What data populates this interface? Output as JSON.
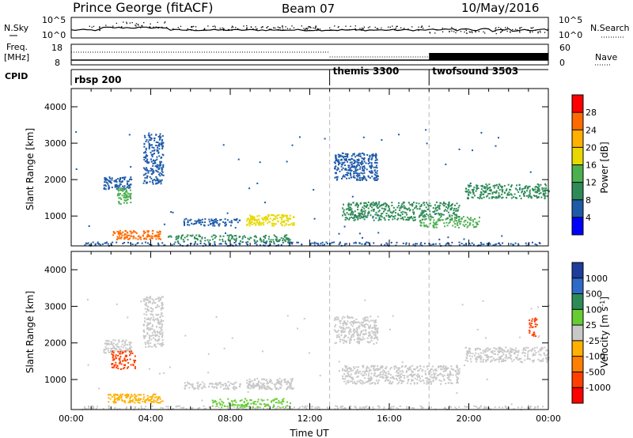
{
  "header": {
    "station": "Prince George (fitACF)",
    "beam": "Beam 07",
    "date": "10/May/2016"
  },
  "aux_panels": {
    "nsky_label": "N.Sky",
    "nsearch_label": "N.Search",
    "nsky_ticks": [
      "10^5",
      "10^0"
    ],
    "nsearch_ticks": [
      "10^5",
      "10^0"
    ],
    "freq_label_1": "Freq.",
    "freq_label_2": "[MHz]",
    "freq_ticks": [
      "18",
      "8"
    ],
    "nave_label": "Nave",
    "nave_ticks": [
      "60",
      "0"
    ],
    "cpid_label": "CPID",
    "cpid_segments": [
      {
        "label": "rbsp 200",
        "start_h": 0
      },
      {
        "label": "themis 3300",
        "start_h": 13
      },
      {
        "label": "twofsound 3503",
        "start_h": 18
      }
    ]
  },
  "colorbars": {
    "power": {
      "label": "Power [dB]",
      "ticks": [
        "28",
        "24",
        "20",
        "16",
        "12",
        "8",
        "4"
      ],
      "colors": [
        "#ff0000",
        "#ff6a00",
        "#ffb000",
        "#e8d800",
        "#4caf50",
        "#2e8b57",
        "#1e5aa8",
        "#0000ff"
      ]
    },
    "velocity": {
      "label": "Velocity",
      "unit_text": "[m s",
      "unit_exp": "-1",
      "unit_close": "]",
      "ticks": [
        "1000",
        "500",
        "100",
        "25",
        "-25",
        "-100",
        "-500",
        "-1000"
      ],
      "colors": [
        "#1e3c9a",
        "#2e6bc8",
        "#2e8b57",
        "#66cc33",
        "#c8c8c8",
        "#ffb000",
        "#ff7f00",
        "#ff4000",
        "#ff0000"
      ]
    }
  },
  "chart_data": [
    {
      "type": "heatmap",
      "quantity": "Power",
      "ylabel": "Slant Range [km]",
      "ylim": [
        180,
        4500
      ],
      "xlim_hours": [
        0,
        24
      ],
      "yticks": [
        1000,
        2000,
        3000,
        4000
      ],
      "features": [
        {
          "t": [
            1.6,
            3.0
          ],
          "r": [
            1750,
            2100
          ],
          "color": "#1e5aa8",
          "density": 0.8
        },
        {
          "t": [
            2.3,
            3.0
          ],
          "r": [
            1350,
            1800
          ],
          "color": "#4caf50",
          "density": 0.8
        },
        {
          "t": [
            3.6,
            4.6
          ],
          "r": [
            1900,
            3300
          ],
          "color": "#1e5aa8",
          "density": 0.6
        },
        {
          "t": [
            2.0,
            4.5
          ],
          "r": [
            380,
            620
          ],
          "color": "#ff6a00",
          "density": 0.8
        },
        {
          "t": [
            5.6,
            8.5
          ],
          "r": [
            750,
            950
          ],
          "color": "#1e5aa8",
          "density": 0.6
        },
        {
          "t": [
            8.8,
            11.2
          ],
          "r": [
            750,
            1050
          ],
          "color": "#e8d800",
          "density": 0.8
        },
        {
          "t": [
            4.8,
            11.0
          ],
          "r": [
            300,
            500
          ],
          "color": "#2e8b57",
          "density": 0.5
        },
        {
          "t": [
            13.2,
            15.4
          ],
          "r": [
            2000,
            2750
          ],
          "color": "#1e5aa8",
          "density": 0.7
        },
        {
          "t": [
            13.6,
            19.5
          ],
          "r": [
            900,
            1400
          ],
          "color": "#2e8b57",
          "density": 0.6
        },
        {
          "t": [
            17.5,
            20.5
          ],
          "r": [
            700,
            1000
          ],
          "color": "#4caf50",
          "density": 0.5
        },
        {
          "t": [
            19.8,
            24.0
          ],
          "r": [
            1500,
            1900
          ],
          "color": "#2e8b57",
          "density": 0.6
        },
        {
          "t": [
            0.5,
            23.8
          ],
          "r": [
            200,
            300
          ],
          "color": "#1e5aa8",
          "density": 0.4
        }
      ]
    },
    {
      "type": "heatmap",
      "quantity": "Velocity",
      "ylabel": "Slant Range [km]",
      "ylim": [
        180,
        4500
      ],
      "xlim_hours": [
        0,
        24
      ],
      "yticks": [
        1000,
        2000,
        3000,
        4000
      ],
      "xticks": [
        "00:00",
        "04:00",
        "08:00",
        "12:00",
        "16:00",
        "20:00",
        "00:00"
      ],
      "xlabel": "Time UT",
      "features": [
        {
          "t": [
            1.6,
            3.0
          ],
          "r": [
            1750,
            2100
          ],
          "color": "#c8c8c8",
          "density": 0.8
        },
        {
          "t": [
            2.0,
            3.2
          ],
          "r": [
            1300,
            1800
          ],
          "color": "#ff4000",
          "density": 0.6
        },
        {
          "t": [
            3.6,
            4.6
          ],
          "r": [
            1900,
            3300
          ],
          "color": "#c8c8c8",
          "density": 0.6
        },
        {
          "t": [
            1.8,
            4.6
          ],
          "r": [
            380,
            620
          ],
          "color": "#ffb000",
          "density": 0.8
        },
        {
          "t": [
            5.6,
            8.5
          ],
          "r": [
            750,
            950
          ],
          "color": "#c8c8c8",
          "density": 0.6
        },
        {
          "t": [
            8.8,
            11.2
          ],
          "r": [
            750,
            1050
          ],
          "color": "#c8c8c8",
          "density": 0.8
        },
        {
          "t": [
            7.0,
            11.0
          ],
          "r": [
            250,
            500
          ],
          "color": "#66cc33",
          "density": 0.5
        },
        {
          "t": [
            13.2,
            15.4
          ],
          "r": [
            2000,
            2750
          ],
          "color": "#c8c8c8",
          "density": 0.6
        },
        {
          "t": [
            13.6,
            19.5
          ],
          "r": [
            900,
            1400
          ],
          "color": "#c8c8c8",
          "density": 0.6
        },
        {
          "t": [
            19.8,
            24.0
          ],
          "r": [
            1500,
            1900
          ],
          "color": "#c8c8c8",
          "density": 0.6
        },
        {
          "t": [
            23.0,
            23.4
          ],
          "r": [
            2200,
            2700
          ],
          "color": "#ff4000",
          "density": 0.6
        },
        {
          "t": [
            0.5,
            23.8
          ],
          "r": [
            200,
            300
          ],
          "color": "#c8c8c8",
          "density": 0.4
        }
      ]
    }
  ]
}
